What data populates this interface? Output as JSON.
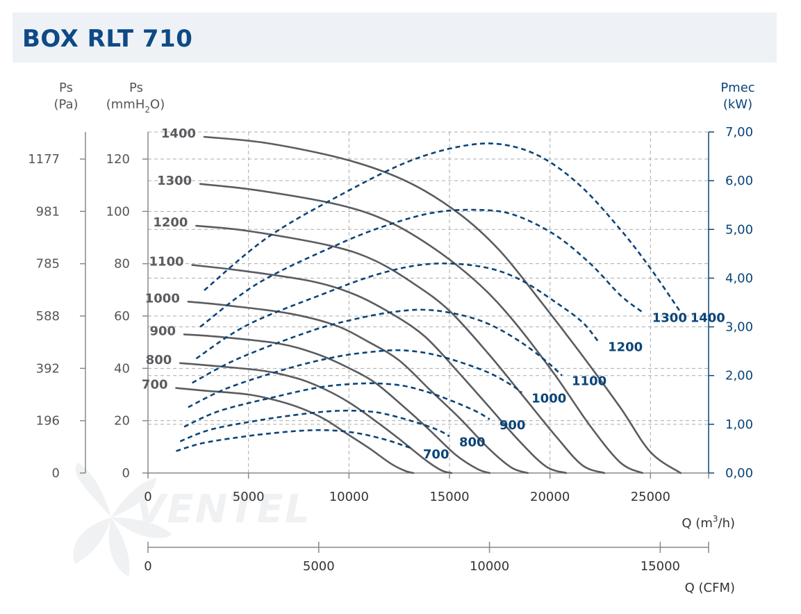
{
  "page": {
    "title": "BOX RLT 710"
  },
  "axes": {
    "pa_label": "Ps",
    "pa_unit": "(Pa)",
    "mm_label": "Ps",
    "mm_unit_prefix": "(mmH",
    "mm_unit_sub": "2",
    "mm_unit_suffix": "O)",
    "p_label": "Pmec",
    "p_unit": "(kW)",
    "q_label_prefix": "Q (m",
    "q_label_sup": "3",
    "q_label_suffix": "/h)",
    "cfm_label": "Q (CFM)"
  },
  "logo": {
    "text": "VENTEL"
  },
  "colors": {
    "pressure": "#5b5c60",
    "power": "#0a4478",
    "grid": "#aaaaaa",
    "title": "#0e4a86",
    "axis": "#555555",
    "paxis": "#0a4478"
  },
  "chart_data": {
    "type": "line",
    "title": "BOX RLT 710",
    "xlabel": "Q (m3/h)",
    "ylabel": "Ps (mmH2O)",
    "y2label": "Pmec (kW)",
    "xlim": [
      0,
      28000
    ],
    "ylim": [
      0,
      130
    ],
    "y2lim": [
      0,
      7
    ],
    "xticks": [
      "0",
      "5000",
      "10000",
      "15000",
      "20000",
      "25000"
    ],
    "yticks_mm": [
      "0",
      "20",
      "40",
      "60",
      "80",
      "100",
      "120"
    ],
    "yticks_pa": [
      "0",
      "196",
      "392",
      "588",
      "785",
      "981",
      "1177"
    ],
    "y2ticks": [
      "0,00",
      "1,00",
      "2,00",
      "3,00",
      "4,00",
      "5,00",
      "6,00",
      "7,00"
    ],
    "cfm_ticks": [
      "0",
      "5000",
      "10000",
      "15000"
    ],
    "pressure_series": [
      {
        "name": "1400",
        "points": [
          [
            2800,
            128.5
          ],
          [
            6000,
            126
          ],
          [
            10000,
            119.5
          ],
          [
            13000,
            111
          ],
          [
            15500,
            99
          ],
          [
            17500,
            85
          ],
          [
            19500,
            66
          ],
          [
            21500,
            46
          ],
          [
            23500,
            25
          ],
          [
            25000,
            8
          ],
          [
            26500,
            0
          ]
        ]
      },
      {
        "name": "1300",
        "points": [
          [
            2600,
            110.5
          ],
          [
            5500,
            108
          ],
          [
            9500,
            102.5
          ],
          [
            12000,
            96
          ],
          [
            14300,
            85.5
          ],
          [
            16500,
            72
          ],
          [
            18200,
            58
          ],
          [
            20200,
            38
          ],
          [
            22000,
            18
          ],
          [
            23500,
            4
          ],
          [
            24600,
            0
          ]
        ]
      },
      {
        "name": "1200",
        "points": [
          [
            2400,
            94.5
          ],
          [
            5000,
            92.5
          ],
          [
            9000,
            87
          ],
          [
            11200,
            81.5
          ],
          [
            13200,
            72.5
          ],
          [
            15000,
            62
          ],
          [
            17000,
            45
          ],
          [
            18600,
            30
          ],
          [
            20300,
            14
          ],
          [
            21600,
            3
          ],
          [
            22700,
            0
          ]
        ]
      },
      {
        "name": "1100",
        "points": [
          [
            2200,
            79.5
          ],
          [
            4500,
            77.5
          ],
          [
            8000,
            73.5
          ],
          [
            10200,
            68.5
          ],
          [
            12100,
            61
          ],
          [
            13800,
            52
          ],
          [
            15500,
            38
          ],
          [
            17000,
            25
          ],
          [
            18500,
            12
          ],
          [
            19800,
            2.5
          ],
          [
            20800,
            0
          ]
        ]
      },
      {
        "name": "1000",
        "points": [
          [
            2000,
            65.5
          ],
          [
            4000,
            64
          ],
          [
            7000,
            61
          ],
          [
            9300,
            56.5
          ],
          [
            11000,
            50
          ],
          [
            12500,
            43
          ],
          [
            14000,
            32
          ],
          [
            15500,
            21
          ],
          [
            17000,
            9
          ],
          [
            18100,
            2
          ],
          [
            18900,
            0
          ]
        ]
      },
      {
        "name": "900",
        "points": [
          [
            1800,
            53
          ],
          [
            3600,
            52
          ],
          [
            6500,
            49.5
          ],
          [
            8400,
            45.5
          ],
          [
            9900,
            40.5
          ],
          [
            11300,
            34.5
          ],
          [
            12700,
            25.5
          ],
          [
            14000,
            16.5
          ],
          [
            15300,
            7
          ],
          [
            16400,
            1.5
          ],
          [
            17000,
            0
          ]
        ]
      },
      {
        "name": "800",
        "points": [
          [
            1600,
            42
          ],
          [
            3200,
            41
          ],
          [
            5800,
            39
          ],
          [
            7500,
            36
          ],
          [
            8800,
            32
          ],
          [
            10000,
            27
          ],
          [
            11300,
            20
          ],
          [
            12500,
            13
          ],
          [
            13800,
            5
          ],
          [
            14600,
            1
          ],
          [
            15100,
            0
          ]
        ]
      },
      {
        "name": "700",
        "points": [
          [
            1400,
            32.5
          ],
          [
            2800,
            31.5
          ],
          [
            5000,
            30
          ],
          [
            6500,
            27.5
          ],
          [
            7700,
            24.5
          ],
          [
            8800,
            20.5
          ],
          [
            9900,
            15
          ],
          [
            11000,
            9.5
          ],
          [
            12100,
            3.5
          ],
          [
            12800,
            0.8
          ],
          [
            13200,
            0
          ]
        ]
      }
    ],
    "power_series": [
      {
        "name": "1400",
        "points": [
          [
            2800,
            3.75
          ],
          [
            6000,
            4.85
          ],
          [
            10000,
            5.8
          ],
          [
            13000,
            6.4
          ],
          [
            15500,
            6.7
          ],
          [
            17500,
            6.75
          ],
          [
            19500,
            6.5
          ],
          [
            21500,
            5.9
          ],
          [
            23500,
            5.0
          ],
          [
            25000,
            4.2
          ],
          [
            26500,
            3.3
          ]
        ]
      },
      {
        "name": "1300",
        "points": [
          [
            2600,
            3.0
          ],
          [
            5500,
            3.9
          ],
          [
            9500,
            4.7
          ],
          [
            12000,
            5.1
          ],
          [
            14300,
            5.35
          ],
          [
            16500,
            5.4
          ],
          [
            18200,
            5.3
          ],
          [
            20200,
            4.9
          ],
          [
            22000,
            4.3
          ],
          [
            23500,
            3.65
          ],
          [
            24600,
            3.3
          ]
        ]
      },
      {
        "name": "1200",
        "points": [
          [
            2400,
            2.35
          ],
          [
            5000,
            3.05
          ],
          [
            9000,
            3.72
          ],
          [
            11200,
            4.05
          ],
          [
            13200,
            4.25
          ],
          [
            15000,
            4.3
          ],
          [
            17000,
            4.2
          ],
          [
            18600,
            3.95
          ],
          [
            20300,
            3.5
          ],
          [
            21600,
            3.1
          ],
          [
            22400,
            2.7
          ]
        ]
      },
      {
        "name": "1100",
        "points": [
          [
            2200,
            1.85
          ],
          [
            4500,
            2.35
          ],
          [
            8000,
            2.9
          ],
          [
            10200,
            3.15
          ],
          [
            12100,
            3.3
          ],
          [
            13800,
            3.35
          ],
          [
            15500,
            3.25
          ],
          [
            17000,
            3.05
          ],
          [
            18500,
            2.7
          ],
          [
            19800,
            2.3
          ],
          [
            20600,
            2.0
          ]
        ]
      },
      {
        "name": "1000",
        "points": [
          [
            2000,
            1.35
          ],
          [
            4000,
            1.75
          ],
          [
            7000,
            2.15
          ],
          [
            9300,
            2.38
          ],
          [
            11000,
            2.48
          ],
          [
            12500,
            2.52
          ],
          [
            14000,
            2.45
          ],
          [
            15500,
            2.28
          ],
          [
            17000,
            2.05
          ],
          [
            18100,
            1.8
          ],
          [
            18600,
            1.65
          ]
        ]
      },
      {
        "name": "900",
        "points": [
          [
            1800,
            0.95
          ],
          [
            3600,
            1.28
          ],
          [
            6500,
            1.58
          ],
          [
            8400,
            1.75
          ],
          [
            9900,
            1.82
          ],
          [
            11300,
            1.84
          ],
          [
            12700,
            1.79
          ],
          [
            14000,
            1.65
          ],
          [
            15300,
            1.45
          ],
          [
            16400,
            1.25
          ],
          [
            17000,
            1.1
          ]
        ]
      },
      {
        "name": "800",
        "points": [
          [
            1600,
            0.65
          ],
          [
            3200,
            0.9
          ],
          [
            5800,
            1.1
          ],
          [
            7500,
            1.2
          ],
          [
            8800,
            1.26
          ],
          [
            10000,
            1.28
          ],
          [
            11300,
            1.25
          ],
          [
            12500,
            1.14
          ],
          [
            13800,
            0.98
          ],
          [
            14600,
            0.85
          ],
          [
            15000,
            0.75
          ]
        ]
      },
      {
        "name": "700",
        "points": [
          [
            1400,
            0.45
          ],
          [
            2800,
            0.62
          ],
          [
            5000,
            0.76
          ],
          [
            6500,
            0.83
          ],
          [
            7700,
            0.87
          ],
          [
            8800,
            0.88
          ],
          [
            9900,
            0.85
          ],
          [
            11000,
            0.77
          ],
          [
            12100,
            0.65
          ],
          [
            12800,
            0.55
          ],
          [
            13200,
            0.5
          ]
        ]
      }
    ]
  }
}
